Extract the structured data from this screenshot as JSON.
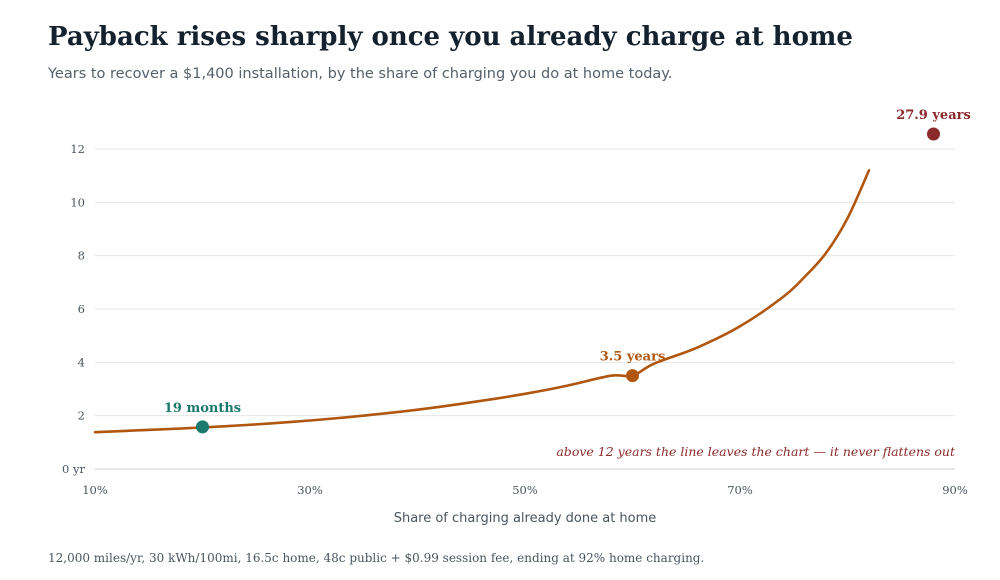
{
  "title": "Payback rises sharply once you already charge at home",
  "subtitle": "Years to recover a $1,400 installation, by the share of charging you do at home today.",
  "footnote": "12,000 miles/yr, 30 kWh/100mi, 16.5c home, 48c public + $0.99 session fee, ending at 92% home charging.",
  "colors": {
    "line": "#b0560f",
    "grid": "#e6e6e6",
    "teal": "#1a7a6d",
    "orange": "#b0560f",
    "red": "#8b2a2a",
    "text": "#14212e"
  },
  "chart_data": {
    "type": "line",
    "title": "Payback rises sharply once you already charge at home",
    "xlabel": "Share of charging already done at home",
    "ylabel": "",
    "xlim": [
      10,
      90
    ],
    "ylim": [
      0,
      12
    ],
    "x_ticks": [
      10,
      30,
      50,
      70,
      90
    ],
    "x_tick_labels": [
      "10%",
      "30%",
      "50%",
      "70%",
      "90%"
    ],
    "y_ticks": [
      0,
      2,
      4,
      6,
      8,
      10,
      12
    ],
    "y_tick_labels": [
      "0 yr",
      "2",
      "4",
      "6",
      "8",
      "10",
      "12"
    ],
    "grid": true,
    "series": [
      {
        "x": [
          10,
          14,
          18,
          22,
          26,
          30,
          34,
          38,
          42,
          46,
          50,
          54,
          58,
          60,
          62,
          66,
          70,
          74,
          76,
          78,
          80,
          82
        ],
        "values": [
          1.38,
          1.45,
          1.52,
          1.6,
          1.7,
          1.82,
          1.96,
          2.13,
          2.33,
          2.56,
          2.82,
          3.13,
          3.5,
          3.5,
          3.95,
          4.55,
          5.35,
          6.45,
          7.2,
          8.1,
          9.4,
          11.2
        ]
      }
    ],
    "highlights": [
      {
        "x": 20,
        "y": 1.58,
        "label": "19 months",
        "color": "#1a7a6d"
      },
      {
        "x": 60,
        "y": 3.5,
        "label": "3.5 years",
        "color": "#b0560f"
      },
      {
        "x": 88,
        "y": 27.9,
        "label": "27.9 years",
        "color": "#8b2a2a",
        "off_chart": true
      }
    ],
    "annotation": "above 12 years the line leaves the chart — it never flattens out"
  }
}
